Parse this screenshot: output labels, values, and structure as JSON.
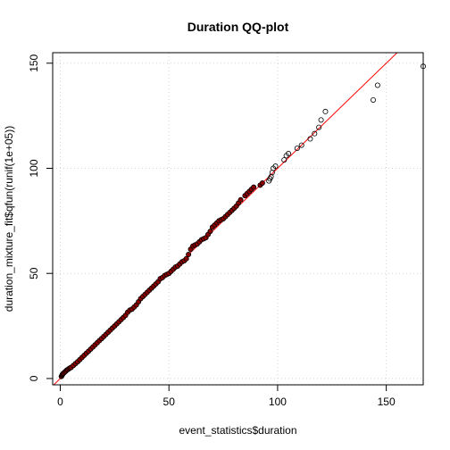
{
  "chart_data": {
    "type": "scatter",
    "title": "Duration QQ-plot",
    "xlabel": "event_statistics$duration",
    "ylabel": "duration_mixture_fit$qfun(runif(1e+05))",
    "xlim": [
      -3.5,
      167
    ],
    "ylim": [
      -3,
      155
    ],
    "xticks": [
      0,
      50,
      100,
      150
    ],
    "yticks": [
      0,
      50,
      100,
      150
    ],
    "grid": true,
    "reference_line": {
      "slope": 1,
      "intercept": 0,
      "color": "#FF0000"
    },
    "point_edge_color": "#000000",
    "point_fill_color": "#8B0000",
    "series": [
      {
        "x": [
          0.5,
          0.8,
          1,
          1.2,
          1.5,
          2,
          2.5,
          3,
          3.5,
          4,
          4.5,
          5,
          6,
          7,
          8,
          9,
          10,
          11,
          12,
          13,
          14,
          15,
          16,
          17,
          18,
          19,
          20,
          21,
          22,
          23,
          24,
          25,
          26,
          27,
          28,
          29,
          30,
          31,
          32,
          33,
          34,
          35,
          36,
          37,
          38,
          39,
          40,
          41,
          42,
          43,
          44,
          45,
          46,
          47,
          48,
          49,
          50,
          51,
          52,
          53,
          54,
          55,
          56,
          57,
          58,
          59,
          60,
          61,
          62,
          63,
          64,
          65,
          66,
          67,
          68,
          69,
          70,
          71,
          72,
          73,
          74,
          75,
          76,
          77,
          78,
          79,
          80,
          81,
          82,
          83,
          85,
          86,
          87,
          88,
          89,
          92,
          93,
          96,
          96.5,
          97,
          97.5,
          98,
          99,
          103,
          104,
          105,
          109,
          111,
          115,
          117,
          119,
          120,
          122,
          144,
          146,
          167
        ],
        "y": [
          1,
          1.5,
          2,
          2.2,
          2.5,
          3,
          3.5,
          4,
          4.3,
          4.7,
          5,
          5.3,
          6.2,
          7.1,
          8,
          9,
          10,
          11,
          12,
          13,
          14,
          15,
          16,
          17,
          18,
          19,
          20,
          21,
          22,
          23,
          24,
          25,
          26,
          27,
          28,
          29,
          30,
          31.5,
          32.5,
          33,
          34,
          35,
          36.5,
          38,
          39,
          40,
          41,
          42,
          43,
          44,
          45,
          46,
          47.5,
          48,
          49,
          49.5,
          50,
          51,
          52,
          53,
          53.5,
          54.5,
          55.5,
          56,
          57,
          59,
          61.5,
          63,
          63.5,
          64,
          65,
          66,
          66.5,
          67,
          68.5,
          70,
          72,
          73,
          74,
          75,
          75.5,
          76,
          77,
          78,
          79,
          80,
          81,
          82,
          83.5,
          85,
          87,
          88,
          89,
          90,
          91,
          92,
          93,
          94,
          95,
          96,
          98,
          100,
          101,
          104,
          106,
          107,
          109.5,
          111,
          114,
          116.5,
          119.5,
          123,
          127,
          132.5,
          139.5,
          148.5
        ]
      }
    ]
  }
}
